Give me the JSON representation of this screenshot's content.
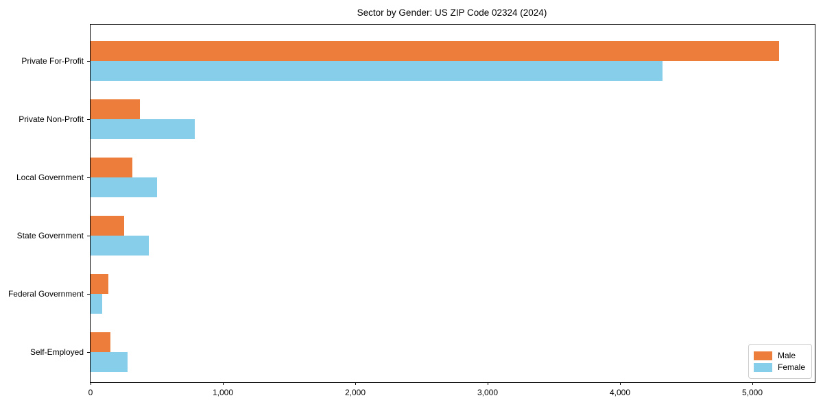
{
  "chart_data": {
    "type": "bar",
    "orientation": "horizontal",
    "title": "Sector by Gender: US ZIP Code 02324 (2024)",
    "categories": [
      "Private For-Profit",
      "Private Non-Profit",
      "Local Government",
      "State Government",
      "Federal Government",
      "Self-Employed"
    ],
    "series": [
      {
        "name": "Male",
        "color": "#ED7D3A",
        "values": [
          5200,
          375,
          315,
          255,
          133,
          150
        ]
      },
      {
        "name": "Female",
        "color": "#87CEEB",
        "values": [
          4320,
          785,
          500,
          440,
          90,
          280
        ]
      }
    ],
    "xlabel": "",
    "ylabel": "",
    "xlim": [
      0,
      5470
    ],
    "xticks": {
      "values": [
        0,
        1000,
        2000,
        3000,
        4000,
        5000
      ],
      "labels": [
        "0",
        "1,000",
        "2,000",
        "3,000",
        "4,000",
        "5,000"
      ]
    },
    "grid": false,
    "legend_position": "lower right",
    "axis_color": "#000000"
  }
}
